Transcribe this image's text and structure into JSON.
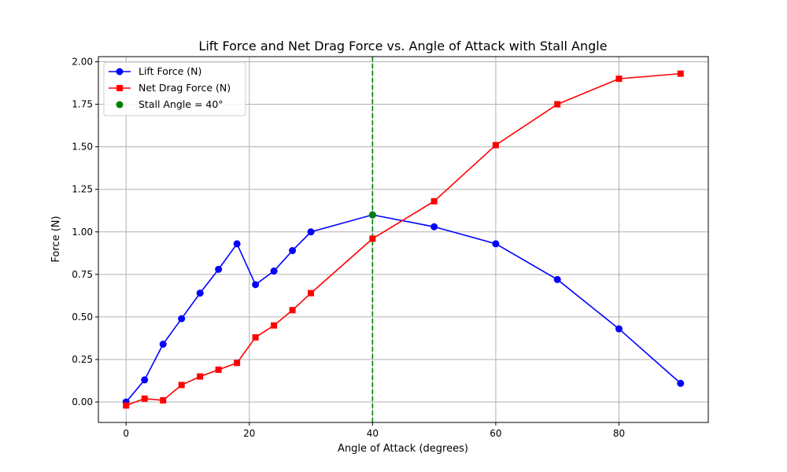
{
  "chart_data": {
    "type": "line",
    "title": "Lift Force and Net Drag Force vs. Angle of Attack with Stall Angle",
    "xlabel": "Angle of Attack (degrees)",
    "ylabel": "Force (N)",
    "xlim": [
      -4.5,
      94.5
    ],
    "ylim": [
      -0.12,
      2.03
    ],
    "xticks": [
      0,
      20,
      40,
      60,
      80
    ],
    "xtick_labels": [
      "0",
      "20",
      "40",
      "60",
      "80"
    ],
    "yticks": [
      0.0,
      0.25,
      0.5,
      0.75,
      1.0,
      1.25,
      1.5,
      1.75,
      2.0
    ],
    "ytick_labels": [
      "0.00",
      "0.25",
      "0.50",
      "0.75",
      "1.00",
      "1.25",
      "1.50",
      "1.75",
      "2.00"
    ],
    "grid": true,
    "legend_position": "top-left",
    "x": [
      0,
      3,
      6,
      9,
      12,
      15,
      18,
      21,
      24,
      27,
      30,
      40,
      50,
      60,
      70,
      80,
      90
    ],
    "series": [
      {
        "name": "Lift Force (N)",
        "color": "#0000ff",
        "marker": "circle",
        "values": [
          0.0,
          0.13,
          0.34,
          0.49,
          0.64,
          0.78,
          0.93,
          0.69,
          0.77,
          0.89,
          1.0,
          1.1,
          1.03,
          0.93,
          0.72,
          0.43,
          0.11
        ]
      },
      {
        "name": "Net Drag Force (N)",
        "color": "#ff0000",
        "marker": "square",
        "values": [
          -0.02,
          0.02,
          0.01,
          0.1,
          0.15,
          0.19,
          0.23,
          0.38,
          0.45,
          0.54,
          0.64,
          0.96,
          1.18,
          1.51,
          1.75,
          1.9,
          1.93
        ]
      }
    ],
    "stall": {
      "label": "Stall Angle = 40°",
      "x": 40,
      "y": 1.1,
      "color": "#008000",
      "line_style": "dashed vertical"
    }
  }
}
